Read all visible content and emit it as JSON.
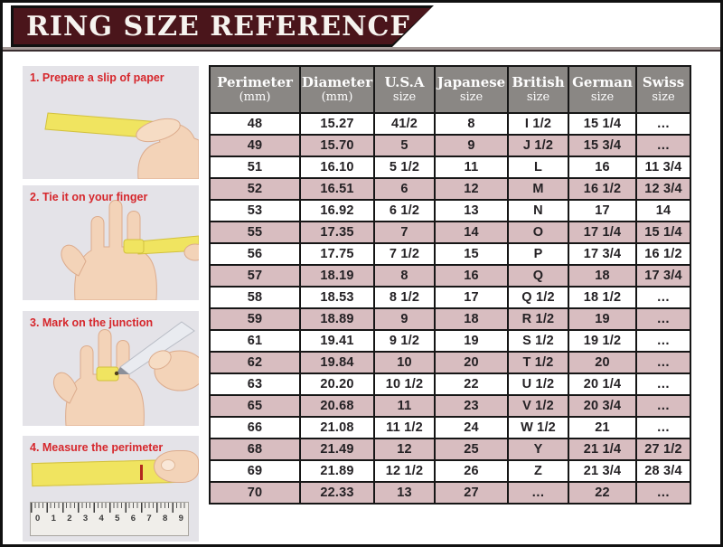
{
  "header": {
    "title": "RING SIZE REFERENCE"
  },
  "steps": [
    {
      "label": "1. Prepare a slip of paper",
      "illustration": "hand-holding-yellow-paper-strip"
    },
    {
      "label": "2. Tie it on your finger",
      "illustration": "paper-strip-tied-around-finger"
    },
    {
      "label": "3. Mark on the junction",
      "illustration": "pen-marking-strip-junction"
    },
    {
      "label": "4. Measure the perimeter",
      "illustration": "paper-strip-measured-on-ruler"
    }
  ],
  "table": {
    "headers": [
      {
        "line1": "Perimeter",
        "line2": "(mm)"
      },
      {
        "line1": "Diameter",
        "line2": "(mm)"
      },
      {
        "line1": "U.S.A",
        "line2": "size"
      },
      {
        "line1": "Japanese",
        "line2": "size"
      },
      {
        "line1": "British",
        "line2": "size"
      },
      {
        "line1": "German",
        "line2": "size"
      },
      {
        "line1": "Swiss",
        "line2": "size"
      }
    ]
  },
  "chart_data": {
    "type": "table",
    "title": "RING SIZE REFERENCE",
    "columns": [
      "Perimeter (mm)",
      "Diameter (mm)",
      "U.S.A size",
      "Japanese size",
      "British size",
      "German size",
      "Swiss size"
    ],
    "rows": [
      [
        "48",
        "15.27",
        "41/2",
        "8",
        "I 1/2",
        "15 1/4",
        "…"
      ],
      [
        "49",
        "15.70",
        "5",
        "9",
        "J 1/2",
        "15 3/4",
        "…"
      ],
      [
        "51",
        "16.10",
        "5 1/2",
        "11",
        "L",
        "16",
        "11 3/4"
      ],
      [
        "52",
        "16.51",
        "6",
        "12",
        "M",
        "16 1/2",
        "12 3/4"
      ],
      [
        "53",
        "16.92",
        "6 1/2",
        "13",
        "N",
        "17",
        "14"
      ],
      [
        "55",
        "17.35",
        "7",
        "14",
        "O",
        "17 1/4",
        "15 1/4"
      ],
      [
        "56",
        "17.75",
        "7 1/2",
        "15",
        "P",
        "17 3/4",
        "16 1/2"
      ],
      [
        "57",
        "18.19",
        "8",
        "16",
        "Q",
        "18",
        "17 3/4"
      ],
      [
        "58",
        "18.53",
        "8 1/2",
        "17",
        "Q 1/2",
        "18 1/2",
        "…"
      ],
      [
        "59",
        "18.89",
        "9",
        "18",
        "R 1/2",
        "19",
        "…"
      ],
      [
        "61",
        "19.41",
        "9 1/2",
        "19",
        "S 1/2",
        "19 1/2",
        "…"
      ],
      [
        "62",
        "19.84",
        "10",
        "20",
        "T 1/2",
        "20",
        "…"
      ],
      [
        "63",
        "20.20",
        "10 1/2",
        "22",
        "U 1/2",
        "20 1/4",
        "…"
      ],
      [
        "65",
        "20.68",
        "11",
        "23",
        "V 1/2",
        "20 3/4",
        "…"
      ],
      [
        "66",
        "21.08",
        "11 1/2",
        "24",
        "W 1/2",
        "21",
        "…"
      ],
      [
        "68",
        "21.49",
        "12",
        "25",
        "Y",
        "21 1/4",
        "27 1/2"
      ],
      [
        "69",
        "21.89",
        "12 1/2",
        "26",
        "Z",
        "21 3/4",
        "28 3/4"
      ],
      [
        "70",
        "22.33",
        "13",
        "27",
        "…",
        "22",
        "…"
      ]
    ]
  },
  "ruler": {
    "numbers": [
      "0",
      "1",
      "2",
      "3",
      "4",
      "5",
      "6",
      "7",
      "8",
      "9"
    ]
  },
  "colors": {
    "banner_maroon": "#4a151b",
    "header_gray": "#8a8784",
    "row_pink": "#d8bdc0",
    "row_white": "#ffffff",
    "step_label_red": "#d6272c",
    "paper_strip_yellow": "#f0e460",
    "border_black": "#161616"
  }
}
